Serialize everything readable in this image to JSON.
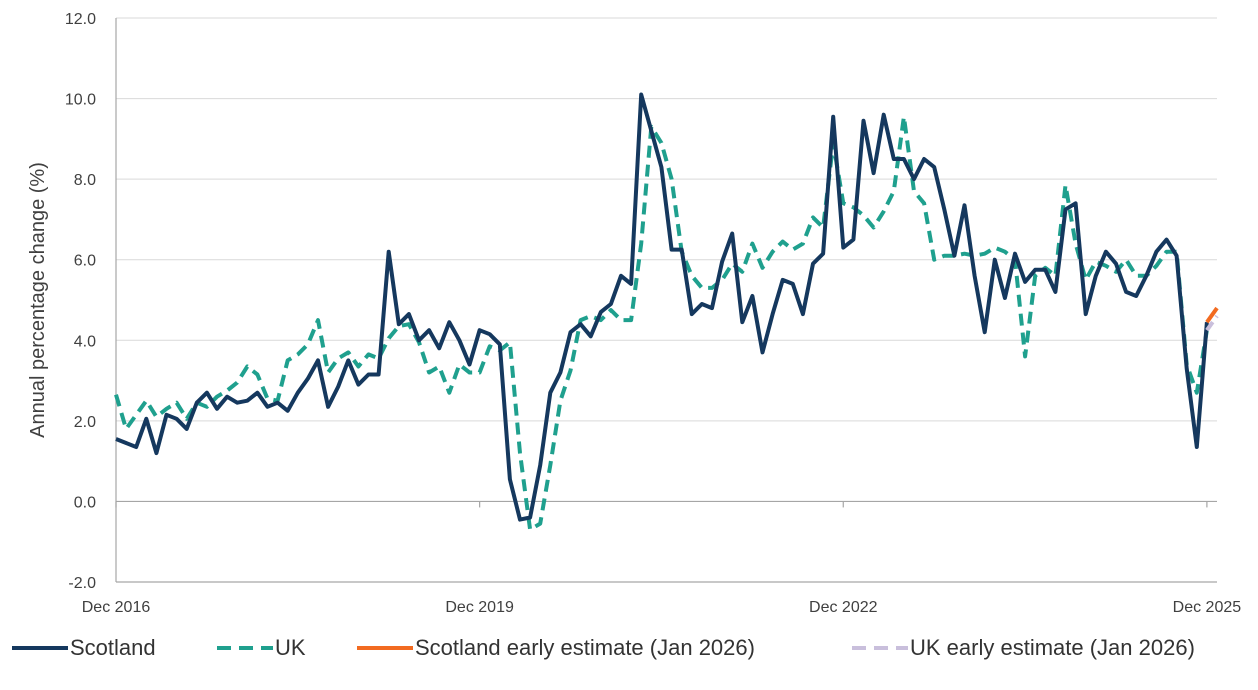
{
  "chart_data": {
    "type": "line",
    "title": "",
    "xlabel": "",
    "ylabel": "Annual percentage change (%)",
    "ylim": [
      -2,
      12
    ],
    "yticks": [
      -2,
      0,
      2,
      4,
      6,
      8,
      10,
      12
    ],
    "ytick_labels": [
      "-2.0",
      "0.0",
      "2.0",
      "4.0",
      "6.0",
      "8.0",
      "10.0",
      "12.0"
    ],
    "xtick_labels": [
      "Dec 2016",
      "Dec 2019",
      "Dec 2022",
      "Dec 2025"
    ],
    "xticks": [
      "2016-12",
      "2019-12",
      "2022-12",
      "2025-12"
    ],
    "grid": true,
    "legend_position": "bottom",
    "colors": {
      "scotland": "#15385e",
      "uk": "#1fa08e",
      "scotland_est": "#f26b21",
      "uk_est": "#c9bfdc",
      "grid": "#d9d9d9",
      "axis": "#a6a6a6"
    },
    "series": [
      {
        "name": "Scotland",
        "style": "solid",
        "start": "2016-12",
        "values": [
          1.55,
          1.45,
          1.35,
          2.05,
          1.2,
          2.15,
          2.05,
          1.8,
          2.45,
          2.7,
          2.3,
          2.6,
          2.45,
          2.5,
          2.7,
          2.35,
          2.45,
          2.25,
          2.7,
          3.05,
          3.5,
          2.35,
          2.85,
          3.5,
          2.9,
          3.15,
          3.15,
          6.2,
          4.4,
          4.65,
          4.0,
          4.25,
          3.8,
          4.45,
          4.0,
          3.4,
          4.25,
          4.15,
          3.9,
          0.55,
          -0.45,
          -0.4,
          0.9,
          2.7,
          3.2,
          4.2,
          4.4,
          4.1,
          4.7,
          4.9,
          5.6,
          5.4,
          10.1,
          9.2,
          8.3,
          6.25,
          6.25,
          4.65,
          4.9,
          4.8,
          5.95,
          6.65,
          4.45,
          5.1,
          3.7,
          4.65,
          5.5,
          5.4,
          4.65,
          5.9,
          6.15,
          9.55,
          6.3,
          6.5,
          9.45,
          8.15,
          9.6,
          8.5,
          8.5,
          8.0,
          8.5,
          8.3,
          7.25,
          6.1,
          7.35,
          5.6,
          4.2,
          6.0,
          5.05,
          6.15,
          5.45,
          5.75,
          5.75,
          5.2,
          7.25,
          7.4,
          4.65,
          5.6,
          6.2,
          5.9,
          5.2,
          5.1,
          5.6,
          6.2,
          6.5,
          6.1,
          3.3,
          1.35,
          4.45
        ]
      },
      {
        "name": "UK",
        "style": "dashed",
        "start": "2016-12",
        "values": [
          2.65,
          1.8,
          2.15,
          2.5,
          2.1,
          2.3,
          2.45,
          2.05,
          2.45,
          2.35,
          2.6,
          2.75,
          2.95,
          3.35,
          3.15,
          2.55,
          2.5,
          3.5,
          3.65,
          3.9,
          4.5,
          3.2,
          3.55,
          3.7,
          3.35,
          3.65,
          3.55,
          4.05,
          4.35,
          4.4,
          3.95,
          3.2,
          3.35,
          2.7,
          3.4,
          3.2,
          3.2,
          3.85,
          3.75,
          3.95,
          1.2,
          -0.7,
          -0.55,
          0.9,
          2.5,
          3.25,
          4.5,
          4.6,
          4.5,
          4.75,
          4.5,
          4.5,
          6.4,
          9.3,
          8.9,
          8.0,
          6.2,
          5.6,
          5.3,
          5.3,
          5.5,
          5.9,
          5.7,
          6.4,
          5.8,
          6.2,
          6.45,
          6.25,
          6.4,
          7.05,
          6.8,
          8.9,
          7.4,
          7.3,
          7.1,
          6.8,
          7.2,
          7.7,
          9.55,
          7.7,
          7.4,
          6.0,
          6.1,
          6.1,
          6.15,
          6.1,
          6.15,
          6.3,
          6.2,
          6.0,
          3.6,
          5.6,
          5.8,
          5.6,
          7.85,
          6.4,
          5.5,
          5.95,
          5.85,
          5.7,
          6.0,
          5.6,
          5.6,
          5.85,
          6.2,
          6.2,
          3.4,
          2.7,
          4.25
        ]
      },
      {
        "name": "Scotland early estimate (Jan 2026)",
        "style": "solid",
        "start": "2025-12",
        "values": [
          4.45,
          4.8
        ]
      },
      {
        "name": "UK early estimate (Jan 2026)",
        "style": "dashed",
        "start": "2025-12",
        "values": [
          4.25,
          4.6
        ]
      }
    ]
  }
}
